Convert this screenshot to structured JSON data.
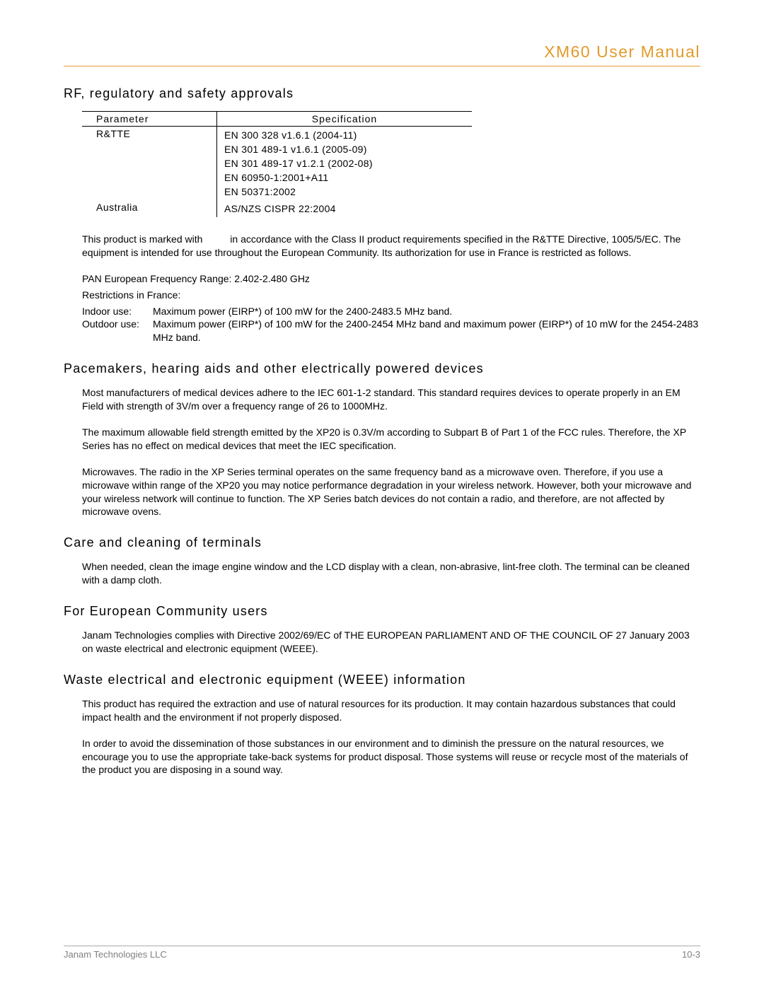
{
  "header": {
    "title": "XM60 User Manual"
  },
  "sections": {
    "rf": {
      "heading": "RF, regulatory and safety approvals",
      "table": {
        "col_parameter": "Parameter",
        "col_specification": "Specification",
        "rows": [
          {
            "parameter": "R&TTE",
            "specs": [
              "EN 300 328 v1.6.1 (2004-11)",
              "EN 301 489-1 v1.6.1 (2005-09)",
              "EN 301 489-17 v1.2.1 (2002-08)",
              "EN 60950-1:2001+A11",
              "EN 50371:2002"
            ]
          },
          {
            "parameter": "Australia",
            "specs": [
              "AS/NZS CISPR 22:2004"
            ]
          }
        ]
      },
      "para_marked": "This product is marked with          in accordance with the Class II product requirements specified in the R&TTE Directive, 1005/5/EC. The equipment is intended for use throughout the European Community. Its authorization for use in France is restricted as follows.",
      "pan_line": "PAN European Frequency Range: 2.402-2.480 GHz",
      "restrict_title": "Restrictions in France:",
      "indoor_label": "Indoor use:",
      "outdoor_label": "Outdoor use:",
      "indoor_val": "Maximum power (EIRP*) of 100 mW for the 2400-2483.5 MHz band.",
      "outdoor_val": "Maximum power (EIRP*) of 100 mW for the 2400-2454 MHz band and maximum power (EIRP*) of 10 mW for the 2454-2483 MHz band."
    },
    "pacemakers": {
      "heading": "Pacemakers, hearing aids and other electrically powered devices",
      "p1": "Most manufacturers of medical devices adhere to the IEC 601-1-2 standard. This standard requires devices to operate properly in an EM Field with strength of 3V/m over a frequency range of 26 to 1000MHz.",
      "p2": "The maximum allowable field strength emitted by the XP20 is 0.3V/m according to Subpart B of Part 1 of the FCC rules. Therefore, the XP Series has no effect on medical devices that meet the IEC specification.",
      "p3": "Microwaves.  The radio in the XP Series terminal operates on the same frequency band as a microwave oven. Therefore, if you use a microwave within range of the XP20 you may notice performance degradation in your wireless network. However, both your microwave and your wireless network will continue to function. The XP Series batch devices do not contain a radio, and therefore, are not affected by microwave ovens."
    },
    "care": {
      "heading": "Care and cleaning of terminals",
      "p1": "When needed, clean the image engine window and the LCD display with a clean, non-abrasive, lint-free cloth. The terminal can be cleaned with a damp cloth."
    },
    "eu": {
      "heading": "For European Community users",
      "p1": "Janam Technologies complies with Directive 2002/69/EC of THE EUROPEAN PARLIAMENT AND OF THE COUNCIL OF 27 January 2003 on waste electrical and electronic equipment (WEEE)."
    },
    "weee": {
      "heading": "Waste electrical and electronic equipment (WEEE) information",
      "p1": "This product has required the extraction and use of natural resources for its production. It may contain hazardous substances that could impact health and the environment if not properly disposed.",
      "p2": "In order to avoid the dissemination of those substances in our environment and to diminish the pressure on the natural resources, we encourage you to use the appropriate take-back systems for product disposal. Those systems will reuse or recycle most of the materials of the product you are disposing in a sound way."
    }
  },
  "footer": {
    "left": "Janam Technologies LLC",
    "right": "10-3"
  },
  "colors": {
    "accent": "#e39a2a",
    "footer_text": "#808080",
    "footer_rule": "#a9a9a9"
  }
}
